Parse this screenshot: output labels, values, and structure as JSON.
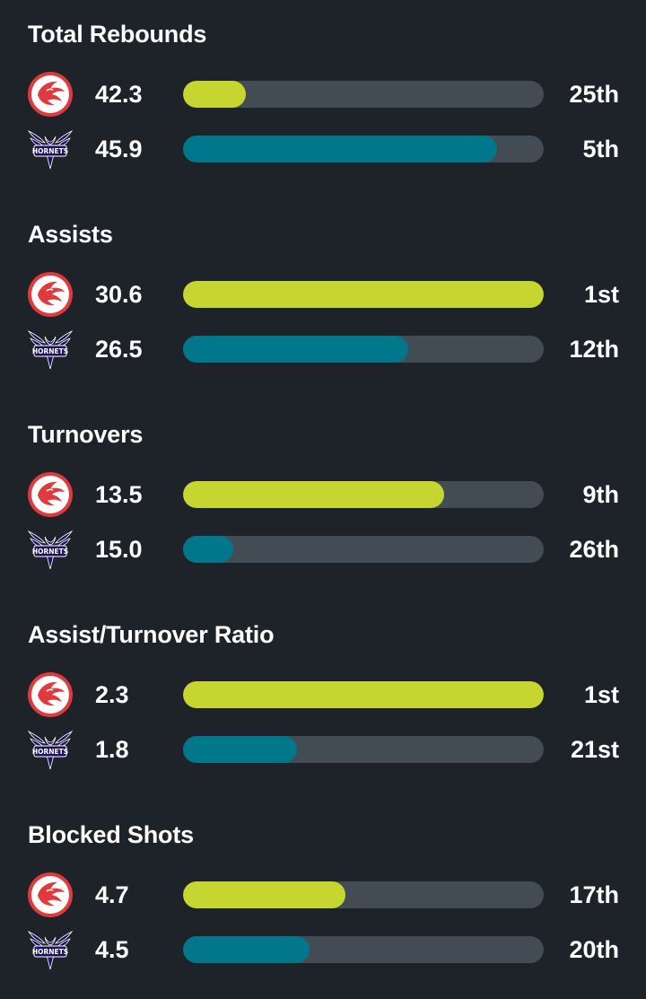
{
  "colors": {
    "background": "#1e2229",
    "track": "#434b54",
    "hawks_bar": "#c6d52f",
    "hornets_bar": "#00778b",
    "hawks_logo": "#e03a3e",
    "hornets_logo": "#1d1160"
  },
  "teams": {
    "hawks": {
      "logo_icon": "hawks-logo-icon"
    },
    "hornets": {
      "logo_icon": "hornets-logo-icon",
      "logo_text": "HORNETS"
    }
  },
  "stats": [
    {
      "title": "Total Rebounds",
      "hawks": {
        "value": "42.3",
        "rank": "25th",
        "fill": 0.175
      },
      "hornets": {
        "value": "45.9",
        "rank": "5th",
        "fill": 0.87
      }
    },
    {
      "title": "Assists",
      "hawks": {
        "value": "30.6",
        "rank": "1st",
        "fill": 1.0
      },
      "hornets": {
        "value": "26.5",
        "rank": "12th",
        "fill": 0.625
      }
    },
    {
      "title": "Turnovers",
      "hawks": {
        "value": "13.5",
        "rank": "9th",
        "fill": 0.725
      },
      "hornets": {
        "value": "15.0",
        "rank": "26th",
        "fill": 0.14
      }
    },
    {
      "title": "Assist/Turnover Ratio",
      "hawks": {
        "value": "2.3",
        "rank": "1st",
        "fill": 1.0
      },
      "hornets": {
        "value": "1.8",
        "rank": "21st",
        "fill": 0.315
      }
    },
    {
      "title": "Blocked Shots",
      "hawks": {
        "value": "4.7",
        "rank": "17th",
        "fill": 0.45
      },
      "hornets": {
        "value": "4.5",
        "rank": "20th",
        "fill": 0.35
      }
    }
  ]
}
